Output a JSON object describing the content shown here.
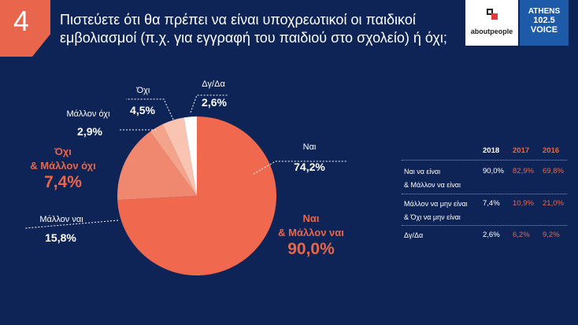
{
  "slide_number": "4",
  "title": "Πιστεύετε ότι θα πρέπει να είναι υποχρεωτικοί οι παιδικοί εμβολιασμοί (π.χ. για εγγραφή του παιδιού στο σχολείο) ή όχι;",
  "logos": {
    "aboutpeople": "aboutpeople",
    "athens_voice_1": "ATHENS",
    "athens_voice_2": "102.5",
    "athens_voice_3": "VOICE"
  },
  "colors": {
    "background": "#0f2456",
    "accent": "#e8674c",
    "slice_nai": "#f0694f",
    "slice_mallon_nai": "#f0876f",
    "slice_mallon_oxi": "#f5a48c",
    "slice_oxi": "#f9c4b2",
    "slice_dyda": "#ffffff"
  },
  "chart_data": {
    "type": "pie",
    "start_angle_deg": 0,
    "direction": "clockwise",
    "slices": [
      {
        "key": "nai",
        "label": "Ναι",
        "value": 74.2,
        "display": "74,2%",
        "color": "#f0694f"
      },
      {
        "key": "mallon_nai",
        "label": "Μάλλον ναι",
        "value": 15.8,
        "display": "15,8%",
        "color": "#f0876f"
      },
      {
        "key": "mallon_oxi",
        "label": "Μάλλον όχι",
        "value": 2.9,
        "display": "2,9%",
        "color": "#f5a48c"
      },
      {
        "key": "oxi",
        "label": "Όχι",
        "value": 4.5,
        "display": "4,5%",
        "color": "#f9c4b2"
      },
      {
        "key": "dyda",
        "label": "Δγ/Δα",
        "value": 2.6,
        "display": "2,6%",
        "color": "#ffffff"
      }
    ],
    "groups": [
      {
        "label_1": "Ναι",
        "label_2": "& Μάλλον ναι",
        "display": "90,0%"
      },
      {
        "label_1": "Όχι",
        "label_2": "& Μάλλον όχι",
        "display": "7,4%"
      }
    ]
  },
  "table": {
    "headers": [
      "2018",
      "2017",
      "2016"
    ],
    "rows": [
      {
        "label_1": "Ναι να είναι",
        "label_2": "& Μάλλον να είναι",
        "values": [
          "90,0%",
          "82,9%",
          "69,8%"
        ]
      },
      {
        "label_1": "Μάλλον να μην είναι",
        "label_2": "& Όχι να μην είναι",
        "values": [
          "7,4%",
          "10,9%",
          "21,0%"
        ]
      },
      {
        "label_1": "Δγ/Δα",
        "label_2": "",
        "values": [
          "2,6%",
          "6,2%",
          "9,2%"
        ]
      }
    ]
  }
}
